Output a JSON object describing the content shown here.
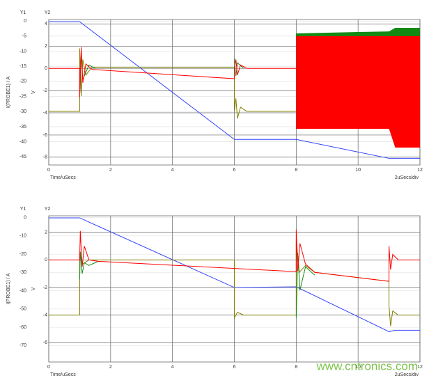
{
  "chart_data": [
    {
      "type": "line",
      "y1_label": "Y1",
      "y2_label": "Y2",
      "y1_title": "I(PROBE1) / A",
      "y2_title": "V",
      "x_title": "Time/uSecs",
      "x_scale": "2uSecs/div",
      "xlim": [
        0,
        12
      ],
      "xticks": [
        0,
        2,
        4,
        6,
        8,
        10,
        12
      ],
      "ylim": [
        -47.7,
        0.5
      ],
      "yticks": [
        0,
        -5,
        -10,
        -15,
        -20,
        -25,
        -30,
        -35,
        -40,
        -45
      ],
      "y2lim": [
        -8.7,
        4.4
      ],
      "y2ticks": [
        4,
        2,
        0,
        -2,
        -4,
        -6,
        -8
      ],
      "grid": true,
      "bands": [
        {
          "color": "#138a13",
          "axis": "y2",
          "x": [
            8,
            11,
            11.2,
            12
          ],
          "upper": [
            3.15,
            3.33,
            3.65,
            3.65
          ],
          "lower": [
            2.5,
            2.5,
            2.5,
            2.5
          ]
        },
        {
          "color": "#ff0000",
          "axis": "y2",
          "x": [
            8,
            11,
            11.2,
            12
          ],
          "upper": [
            2.9,
            2.9,
            2.9,
            2.9
          ],
          "lower": [
            -5.44,
            -5.44,
            -7.13,
            -7.13
          ]
        }
      ],
      "series": [
        {
          "color": "#3344ff",
          "axis": "y2",
          "x": [
            0,
            1,
            6,
            8,
            11,
            12
          ],
          "values": [
            4.2,
            4.2,
            -6.4,
            -6.4,
            -8.1,
            -8.1
          ]
        },
        {
          "color": "#808000",
          "axis": "y2",
          "x": [
            0,
            1,
            1,
            1.05,
            1.1,
            1.2,
            1.4,
            6,
            6,
            6.05,
            6.1,
            6.2,
            6.4,
            8
          ],
          "values": [
            -3.87,
            -3.87,
            1.8,
            -2.5,
            0.8,
            -0.6,
            0.1,
            0.1,
            -3.87,
            -2.7,
            -4.5,
            -3.5,
            -3.87,
            -3.87
          ]
        },
        {
          "color": "#138a13",
          "axis": "y2",
          "x": [
            1,
            1.05,
            1.1,
            1.3,
            1.5,
            5.99,
            6,
            6.05,
            6.1,
            6.3
          ],
          "values": [
            -2.5,
            1.3,
            -1,
            0.3,
            0,
            null,
            0.9,
            -0.7,
            0.5,
            0
          ]
        },
        {
          "color": "#ff0000",
          "axis": "y2",
          "x": [
            0,
            1,
            1,
            1.05,
            1.1,
            1.2,
            1.4,
            6,
            6,
            6.05,
            6.1,
            6.2,
            6.4,
            8
          ],
          "values": [
            0,
            0,
            -2.6,
            1.9,
            -1.3,
            0.4,
            -0.1,
            -0.93,
            0,
            0.8,
            -0.6,
            0.3,
            0,
            0
          ]
        }
      ]
    },
    {
      "type": "line",
      "y1_label": "Y1",
      "y2_label": "Y2",
      "y1_title": "I(PROBE1) / A",
      "y2_title": "V",
      "x_title": "Time/uSecs",
      "x_scale": "2uSecs/div",
      "xlim": [
        0,
        12
      ],
      "xticks": [
        0,
        2,
        4,
        6,
        8,
        10,
        12
      ],
      "ylim": [
        -79,
        1
      ],
      "yticks": [
        0,
        -10,
        -20,
        -30,
        -40,
        -50,
        -60,
        -70
      ],
      "y2lim": [
        -7.4,
        3.2
      ],
      "y2ticks": [
        2,
        0,
        -2,
        -4,
        -6
      ],
      "grid": true,
      "bands": [],
      "series": [
        {
          "color": "#3344ff",
          "axis": "y2",
          "x": [
            0,
            1,
            6,
            8,
            11,
            11.2,
            12
          ],
          "values": [
            3.05,
            3.05,
            -2,
            -1.95,
            -5.2,
            -5.1,
            -5.1
          ]
        },
        {
          "color": "#808000",
          "axis": "y2",
          "x": [
            0,
            1,
            1,
            1.1,
            1.3,
            6,
            6,
            6.1,
            6.3,
            8,
            8,
            8.1,
            8.3,
            8.6,
            11,
            11,
            11.05,
            11.12,
            11.3,
            12
          ],
          "values": [
            -4,
            -4,
            0.5,
            -0.3,
            0,
            0,
            -4.2,
            -3.8,
            -4,
            -4,
            1.5,
            -0.9,
            -0.4,
            -0.9,
            -1.55,
            -3.3,
            -4.8,
            -3.7,
            -4,
            -4
          ]
        },
        {
          "color": "#138a13",
          "axis": "y2",
          "x": [
            1,
            1.02,
            1.08,
            1.15,
            1.3,
            1.6,
            7.99,
            8,
            8.05,
            8.12,
            8.3,
            8.6
          ],
          "values": [
            -1.4,
            0.6,
            -1,
            -0.2,
            -0.4,
            -0.1,
            null,
            -4.2,
            0.5,
            -2.2,
            -0.5,
            -1.1
          ]
        },
        {
          "color": "#ff0000",
          "axis": "y2",
          "x": [
            0,
            1,
            1.02,
            1.08,
            1.15,
            1.3,
            1.6,
            8,
            8,
            8.05,
            8.12,
            8.3,
            8.6,
            11,
            11,
            11.05,
            11.12,
            11.3,
            12
          ],
          "values": [
            0,
            0,
            2.1,
            -0.5,
            1,
            0,
            -0.1,
            -0.85,
            2.2,
            -0.8,
            1.2,
            -0.3,
            -0.9,
            -1.55,
            1,
            -0.7,
            0.4,
            0,
            0
          ]
        }
      ]
    }
  ],
  "watermark": "www.cntronics.com"
}
